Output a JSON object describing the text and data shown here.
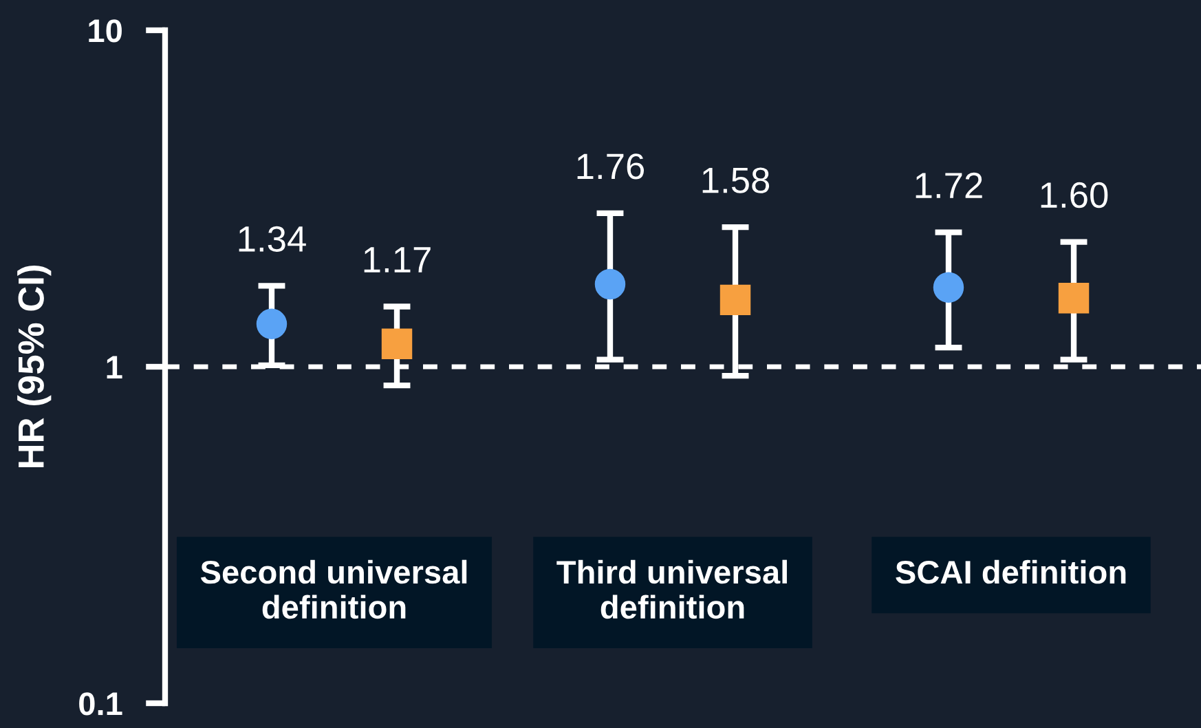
{
  "chart_data": {
    "type": "scatter",
    "ylabel": "HR (95% CI)",
    "categories": [
      "Second universal\ndefinition",
      "Third universal\ndefinition",
      "SCAI definition"
    ],
    "series": [
      {
        "color": "#5aa3f5",
        "marker": "circle",
        "values": [
          1.34,
          1.76,
          1.72
        ],
        "value_labels": [
          "1.34",
          "1.76",
          "1.72"
        ],
        "errors": [
          [
            1.01,
            1.74
          ],
          [
            1.05,
            2.86
          ],
          [
            1.14,
            2.51
          ]
        ]
      },
      {
        "color": "#f7a040",
        "marker": "square",
        "values": [
          1.17,
          1.58,
          1.6
        ],
        "value_labels": [
          "1.17",
          "1.58",
          "1.60"
        ],
        "errors": [
          [
            0.88,
            1.51
          ],
          [
            0.94,
            2.6
          ],
          [
            1.05,
            2.35
          ]
        ]
      }
    ],
    "log": "y",
    "ylim": [
      0.1,
      10
    ],
    "yticks": [
      0.1,
      1,
      10
    ],
    "grid": false,
    "ref_lines": [
      {
        "axis": "y",
        "value": 1,
        "color": "#ffffff",
        "line_style": "dashed"
      }
    ]
  }
}
